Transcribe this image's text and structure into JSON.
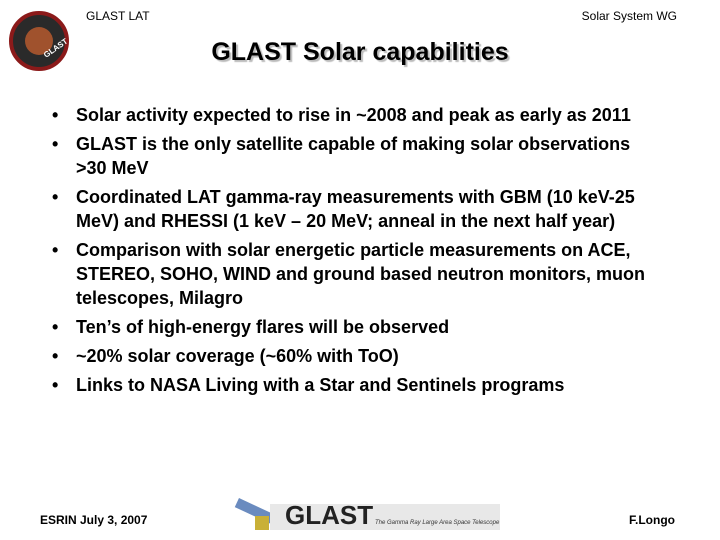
{
  "header": {
    "left": "GLAST LAT",
    "right": "Solar System WG",
    "badge": "GLAST"
  },
  "title": "GLAST Solar capabilities",
  "bullets": [
    "Solar activity expected to rise in ~2008 and peak as early as 2011",
    "GLAST is the only satellite capable of making solar observations >30 MeV",
    "Coordinated LAT gamma-ray measurements with GBM (10 keV-25 MeV) and RHESSI (1 keV – 20 MeV; anneal in the next half year)",
    "Comparison with solar energetic particle measurements on ACE, STEREO, SOHO, WIND and ground based neutron monitors, muon telescopes, Milagro",
    "Ten’s of high-energy flares will be observed",
    "~20% solar coverage (~60% with ToO)",
    "Links to NASA Living with a Star and Sentinels programs"
  ],
  "footer": {
    "left": "ESRIN July 3, 2007",
    "logo": "GLAST",
    "tagline": "The Gamma Ray Large Area Space Telescope",
    "right": "F.Longo"
  }
}
